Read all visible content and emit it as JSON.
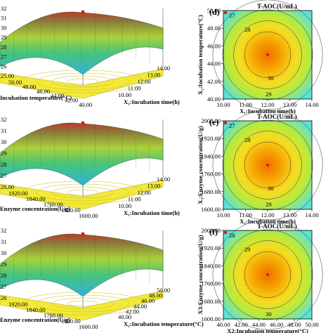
{
  "chart_data": [
    {
      "panel": "a",
      "type": "surface3d",
      "z_ticks": [
        "25.00",
        "26",
        "27",
        "28",
        "29",
        "30",
        "31",
        "32"
      ],
      "x1_ticks": [
        "10.00",
        "11.00",
        "12.00",
        "13.00",
        "14.00"
      ],
      "x1_label": "X₁:Incubation time(h)",
      "x2_ticks": [
        "40.00",
        "42.00",
        "44.00",
        "46.00",
        "48.00",
        "50.00"
      ],
      "x2_label": "Incubation temperature(°C)",
      "zlim": [
        25,
        32
      ],
      "peak": 31.8
    },
    {
      "panel": "b",
      "type": "surface3d",
      "z_ticks": [
        "26.00",
        "27",
        "28",
        "29",
        "30",
        "31",
        "32"
      ],
      "x1_ticks": [
        "10.00",
        "11.00",
        "12.00",
        "13.00",
        "14.00"
      ],
      "x1_label": "X₁:Incubation time(h)",
      "x2_ticks": [
        "1600.00",
        "1680.00",
        "1760.00",
        "1840.00",
        "1920.00"
      ],
      "x2_label": "Enzyme concentration(U/g)",
      "zlim": [
        26,
        32
      ],
      "peak": 31.8
    },
    {
      "panel": "c",
      "type": "surface3d",
      "z_ticks": [
        "26",
        "27",
        "28",
        "29",
        "30",
        "31",
        "32"
      ],
      "x1_ticks": [
        "40.00",
        "42.00",
        "44.00",
        "46.00",
        "48.00",
        "50.00"
      ],
      "x1_label": "X₂:Incubation temperature(°C)",
      "x2_ticks": [
        "1600.00",
        "1680.00",
        "1760.00",
        "1840.00",
        "1920.00"
      ],
      "x2_label": "Enzyme concentration(U/g)",
      "zlim": [
        26,
        32
      ],
      "peak": 31.8
    },
    {
      "panel": "d",
      "type": "contour",
      "title": "T-AOC(U/mL)",
      "xlabel": "X₁:Incubation time(h)",
      "ylabel": "X₂:Incubation temperature(°C)",
      "x_ticks": [
        "10.00",
        "11.00",
        "12.00",
        "13.00",
        "14.00"
      ],
      "y_ticks": [
        "40.00",
        "42.00",
        "44.00",
        "46.00",
        "48.00",
        "50.00"
      ],
      "xlim": [
        10,
        14
      ],
      "ylim": [
        40,
        50
      ],
      "center": [
        12,
        45
      ],
      "contour_labels": [
        "27",
        "28",
        "29",
        "30"
      ]
    },
    {
      "panel": "e",
      "type": "contour",
      "title": "T-AOC(U/mL)",
      "xlabel": "X₁:Incubation time(h)",
      "ylabel": "X₃:Enzyme concentration(U/g)",
      "x_ticks": [
        "10.00",
        "11.00",
        "12.00",
        "13.00",
        "14.00"
      ],
      "y_ticks": [
        "1600.00",
        "1680.00",
        "1760.00",
        "1840.00",
        "1920.00",
        "2000.00"
      ],
      "xlim": [
        10,
        14
      ],
      "ylim": [
        1600,
        2000
      ],
      "center": [
        12,
        1800
      ],
      "contour_labels": [
        "27",
        "28",
        "29",
        "30"
      ]
    },
    {
      "panel": "f",
      "type": "contour",
      "title": "T-AOC(U/mL)",
      "xlabel": "X2:Incubation temperature(°C)",
      "ylabel": "X3:Enzyme concentration(U/g)",
      "x_ticks": [
        "40.00",
        "42.00",
        "44.00",
        "46.00",
        "48.00",
        "50.00"
      ],
      "y_ticks": [
        "1600.00",
        "1680.00",
        "1760.00",
        "1840.00",
        "1920.00",
        "2000.00"
      ],
      "xlim": [
        40,
        50
      ],
      "ylim": [
        1600,
        2000
      ],
      "center": [
        45,
        1800
      ],
      "contour_labels": [
        "28",
        "29",
        "30"
      ]
    }
  ],
  "panel_labels": {
    "d": "(d)",
    "e": "(e)",
    "f": "(f)"
  },
  "colors": {
    "yellow_floor": "#f2e93a",
    "surface_low": "#2fb2d8",
    "surface_mid": "#9fd33a",
    "surface_high": "#c0392b",
    "contour_center": "#f08a00",
    "contour_edge": "#62e3cf"
  }
}
